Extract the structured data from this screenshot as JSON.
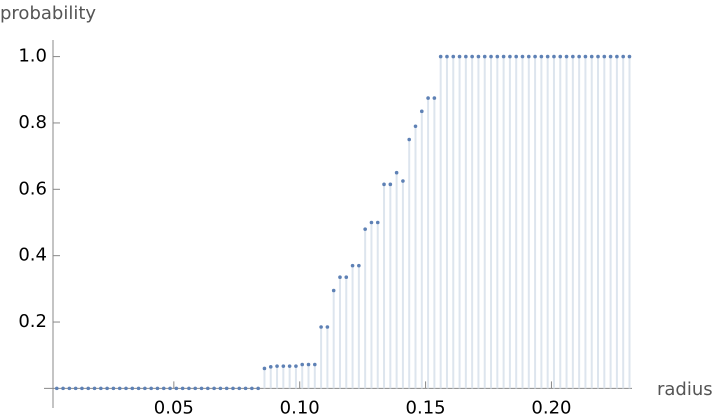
{
  "chart_data": {
    "type": "discrete",
    "x_label": "radius",
    "y_label": "probability",
    "x": [
      0.0035,
      0.006,
      0.0085,
      0.011,
      0.0135,
      0.016,
      0.0185,
      0.021,
      0.0235,
      0.026,
      0.0285,
      0.031,
      0.0335,
      0.036,
      0.0385,
      0.041,
      0.0435,
      0.046,
      0.0485,
      0.051,
      0.0535,
      0.056,
      0.0585,
      0.061,
      0.0635,
      0.066,
      0.0685,
      0.071,
      0.0735,
      0.076,
      0.0785,
      0.081,
      0.0835,
      0.086,
      0.0885,
      0.091,
      0.0935,
      0.096,
      0.0985,
      0.101,
      0.1035,
      0.106,
      0.1085,
      0.111,
      0.1135,
      0.116,
      0.1185,
      0.121,
      0.1235,
      0.126,
      0.1285,
      0.131,
      0.1335,
      0.136,
      0.1385,
      0.141,
      0.1435,
      0.146,
      0.1485,
      0.151,
      0.1535,
      0.156,
      0.1585,
      0.161,
      0.1635,
      0.166,
      0.1685,
      0.171,
      0.1735,
      0.176,
      0.1785,
      0.181,
      0.1835,
      0.186,
      0.1885,
      0.191,
      0.1935,
      0.196,
      0.1985,
      0.201,
      0.2035,
      0.206,
      0.2085,
      0.211,
      0.2135,
      0.216,
      0.2185,
      0.221,
      0.2235,
      0.226,
      0.2285,
      0.231
    ],
    "values": [
      0,
      0,
      0,
      0,
      0,
      0,
      0,
      0,
      0,
      0,
      0,
      0,
      0,
      0,
      0,
      0,
      0,
      0,
      0,
      0,
      0,
      0,
      0,
      0,
      0,
      0,
      0,
      0,
      0,
      0,
      0,
      0,
      0,
      0.06,
      0.065,
      0.067,
      0.067,
      0.067,
      0.067,
      0.072,
      0.072,
      0.072,
      0.185,
      0.185,
      0.295,
      0.335,
      0.335,
      0.37,
      0.37,
      0.48,
      0.5,
      0.5,
      0.615,
      0.615,
      0.65,
      0.625,
      0.75,
      0.79,
      0.835,
      0.875,
      0.875,
      1,
      1,
      1,
      1,
      1,
      1,
      1,
      1,
      1,
      1,
      1,
      1,
      1,
      1,
      1,
      1,
      1,
      1,
      1,
      1,
      1,
      1,
      1,
      1,
      1,
      1,
      1,
      1,
      1,
      1,
      1
    ],
    "color": "#5e81b5",
    "fill_color": "#dde5ee",
    "xlim": [
      0.002,
      0.232
    ],
    "ylim": [
      -0.035,
      1.05
    ],
    "xticks": [
      0.05,
      {
        "value": 0.1,
        "label": "0.10"
      },
      0.15,
      {
        "value": 0.2,
        "label": "0.20"
      }
    ],
    "yticks": [
      0.2,
      0.4,
      0.6,
      0.8,
      {
        "value": 1,
        "label": "1.0"
      }
    ]
  }
}
